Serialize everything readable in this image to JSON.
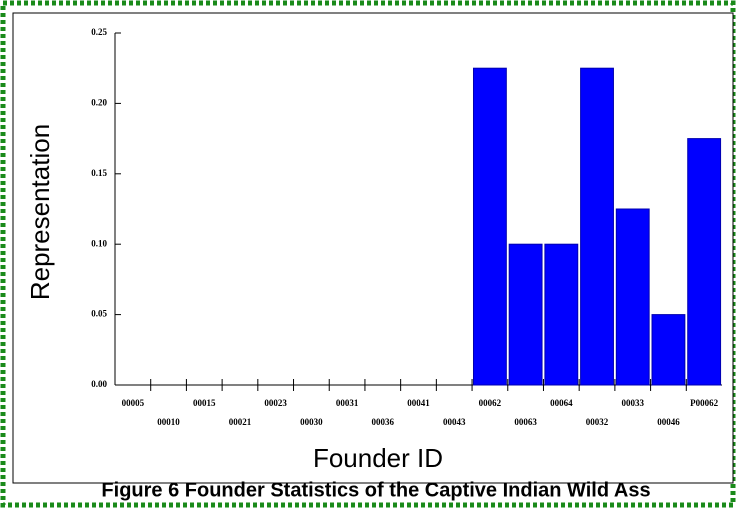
{
  "chart_data": {
    "type": "bar",
    "xlabel": "Founder ID",
    "ylabel": "Representation",
    "caption": "Figure 6 Founder Statistics of the Captive Indian Wild Ass",
    "categories": [
      "00005",
      "00010",
      "00015",
      "00021",
      "00023",
      "00030",
      "00031",
      "00036",
      "00041",
      "00043",
      "00062",
      "00063",
      "00064",
      "00032",
      "00033",
      "00046",
      "P00062"
    ],
    "values": [
      0,
      0,
      0,
      0,
      0,
      0,
      0,
      0,
      0,
      0,
      0.225,
      0.1,
      0.1,
      0.225,
      0.125,
      0.05,
      0.175
    ],
    "color": "#0000ff",
    "ylim": [
      0,
      0.25
    ],
    "yticks": [
      {
        "value": 0,
        "label": "0.00"
      },
      0.05,
      {
        "value": 0.1,
        "label": "0.10"
      },
      0.15,
      {
        "value": 0.2,
        "label": "0.20"
      },
      0.25
    ]
  }
}
